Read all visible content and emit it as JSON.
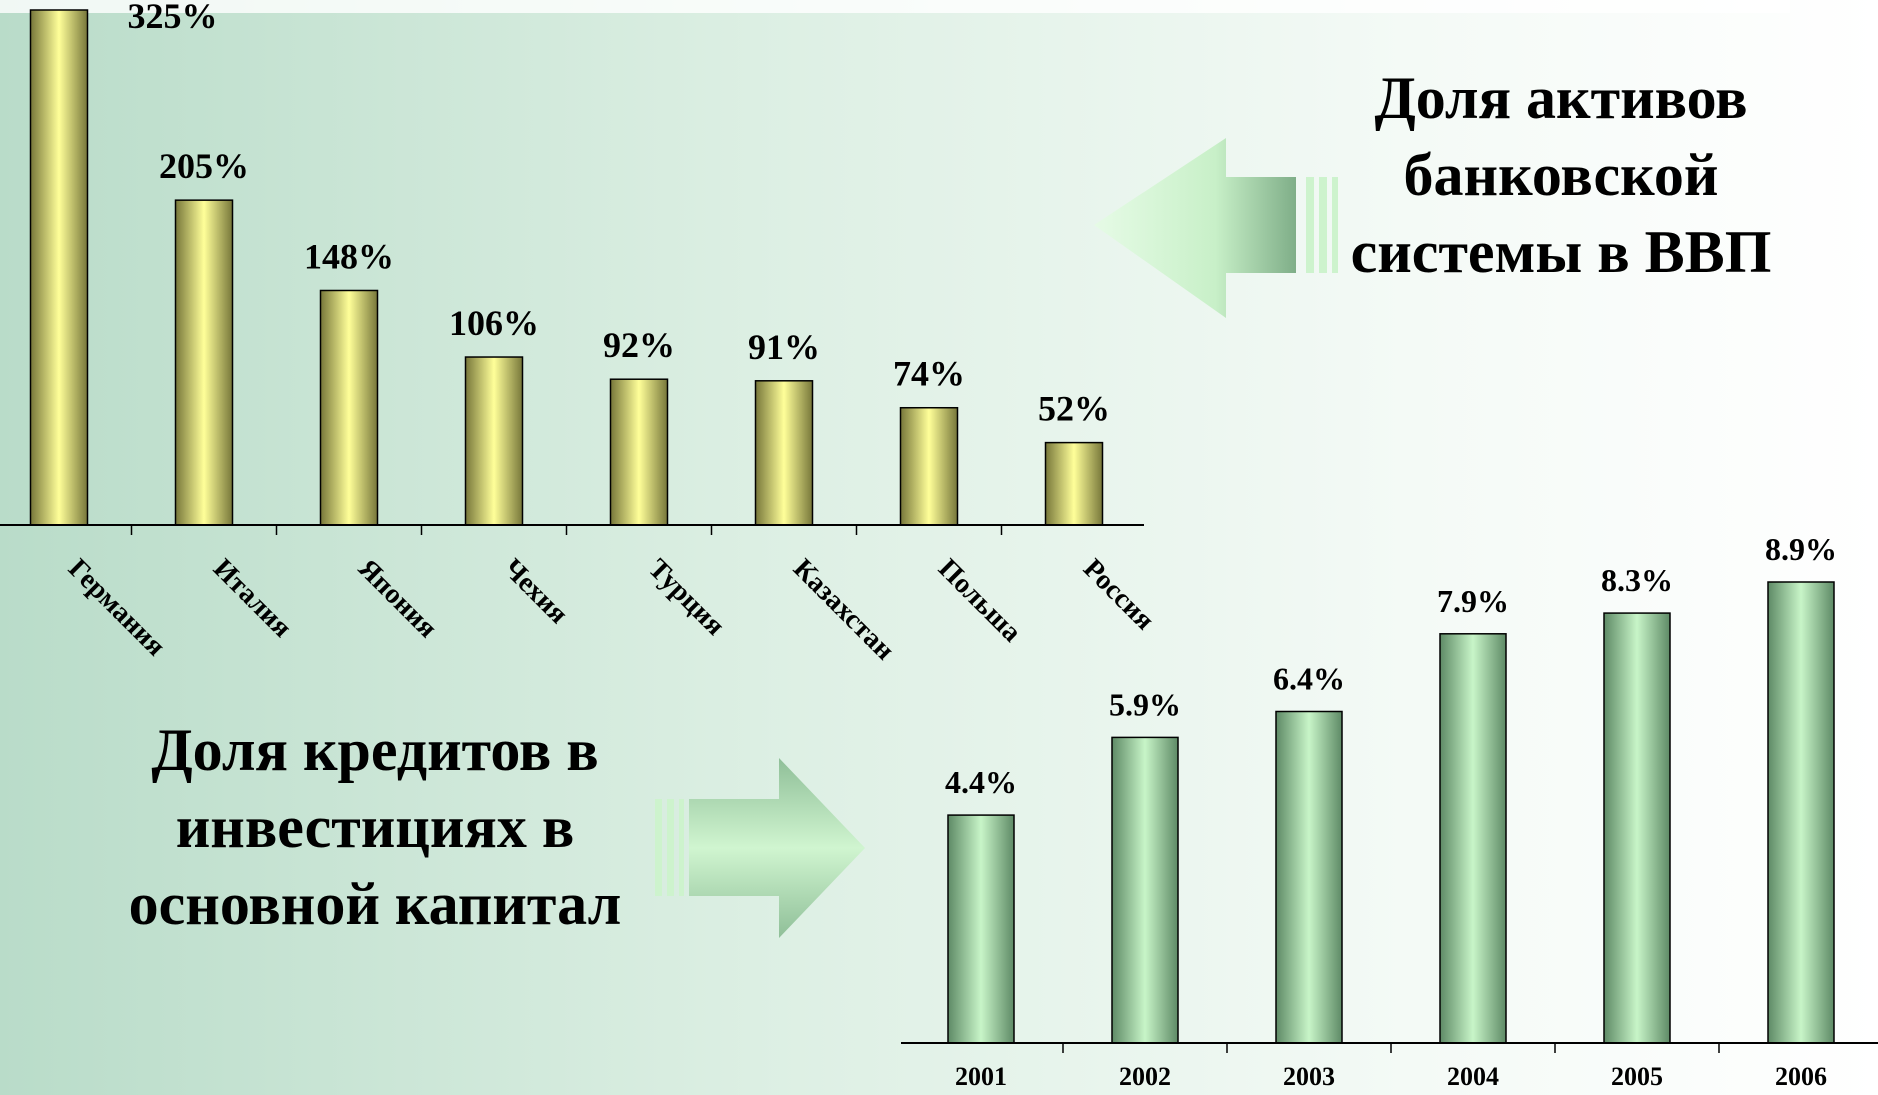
{
  "chart_data": [
    {
      "type": "bar",
      "title": "Доля активов банковской системы в ВВП",
      "categories": [
        "Германия",
        "Италия",
        "Япония",
        "Чехия",
        "Турция",
        "Казахстан",
        "Польша",
        "Россия"
      ],
      "values": [
        325,
        205,
        148,
        106,
        92,
        91,
        74,
        52
      ],
      "value_labels": [
        "325%",
        "205%",
        "148%",
        "106%",
        "92%",
        "91%",
        "74%",
        "52%"
      ],
      "color": "#ffff99",
      "ylim": [
        0,
        325
      ]
    },
    {
      "type": "bar",
      "title": "Доля кредитов в инвестициях в основной капитал",
      "categories": [
        "2001",
        "2002",
        "2003",
        "2004",
        "2005",
        "2006"
      ],
      "values": [
        4.4,
        5.9,
        6.4,
        7.9,
        8.3,
        8.9
      ],
      "value_labels": [
        "4.4%",
        "5.9%",
        "6.4%",
        "7.9%",
        "8.3%",
        "8.9%"
      ],
      "color": "#c8f5c8",
      "ylim": [
        0,
        8.9
      ]
    }
  ]
}
